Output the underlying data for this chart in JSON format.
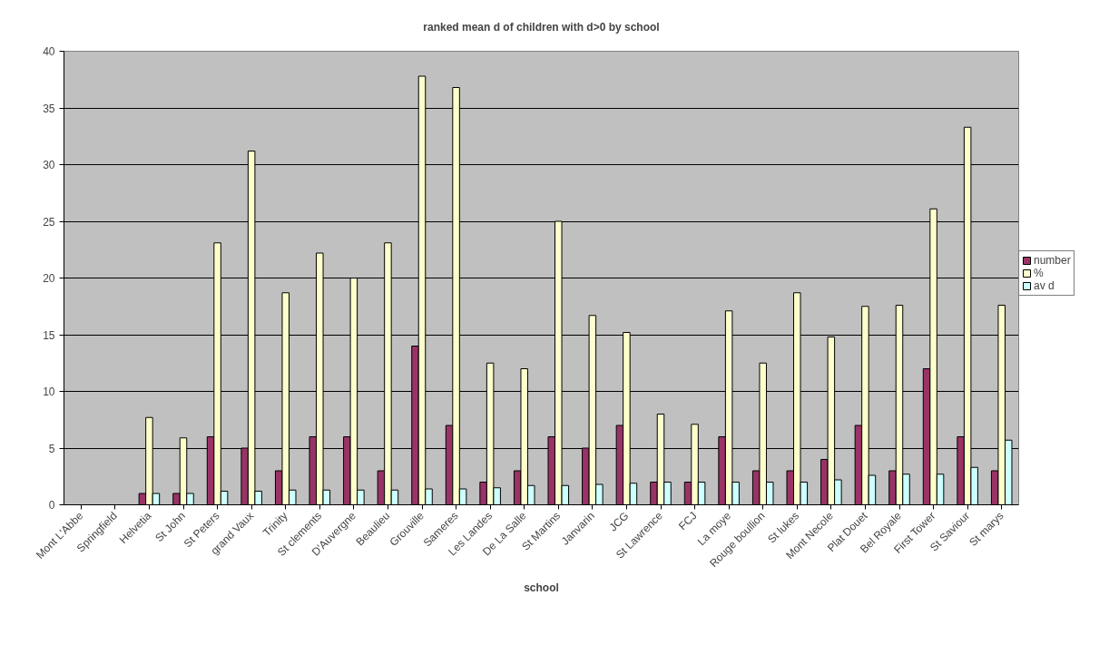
{
  "chart_data": {
    "type": "bar",
    "title": "ranked mean d of children with d>0 by school",
    "xlabel": "school",
    "categories": [
      "Mont L'Abbe",
      "Springfield",
      "Helvetia",
      "St John",
      "St Peters",
      "grand Vaux",
      "Trinity",
      "St clements",
      "D'Auvergne",
      "Beaulieu",
      "Grouville",
      "Sameres",
      "Les Landes",
      "De La Salle",
      "St Martins",
      "Janvarin",
      "JCG",
      "St Lawrence",
      "FCJ",
      "La moye",
      "Rouge boullion",
      "St lukes",
      "Mont Necole",
      "Plat Douet",
      "Bel Royale",
      "First Tower",
      "St Saviour",
      "St marys"
    ],
    "series": [
      {
        "name": "number",
        "color": "#993366",
        "values": [
          null,
          null,
          1,
          1,
          6,
          5,
          3,
          6,
          6,
          3,
          14,
          7,
          2,
          3,
          6,
          5,
          7,
          2,
          2,
          6,
          3,
          3,
          4,
          7,
          3,
          12,
          6,
          3
        ]
      },
      {
        "name": "%",
        "color": "#ffffcc",
        "values": [
          null,
          null,
          7.7,
          5.9,
          23.1,
          31.2,
          18.7,
          22.2,
          20,
          23.1,
          37.8,
          36.8,
          12.5,
          12,
          25,
          16.7,
          15.2,
          8,
          7.1,
          17.1,
          12.5,
          18.7,
          14.8,
          17.5,
          17.6,
          26.1,
          33.3,
          17.6
        ]
      },
      {
        "name": "av d",
        "color": "#ccffff",
        "values": [
          null,
          null,
          1,
          1,
          1.2,
          1.2,
          1.3,
          1.3,
          1.3,
          1.3,
          1.4,
          1.4,
          1.5,
          1.7,
          1.7,
          1.8,
          1.9,
          2,
          2,
          2,
          2,
          2,
          2.2,
          2.6,
          2.7,
          2.7,
          3.3,
          5.7
        ]
      }
    ],
    "ylim": [
      0,
      40
    ],
    "yticks": [
      0,
      5,
      10,
      15,
      20,
      25,
      30,
      35,
      40
    ],
    "grid": "y",
    "legend": "right"
  }
}
